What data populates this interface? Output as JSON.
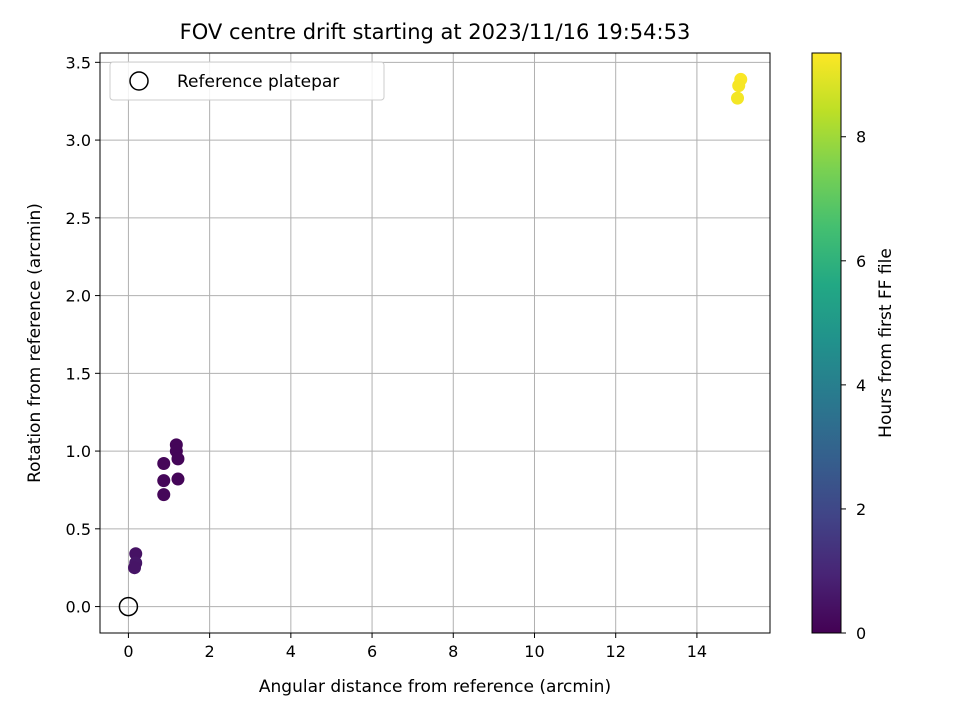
{
  "chart_data": {
    "type": "scatter",
    "title": "FOV centre drift starting at 2023/11/16 19:54:53",
    "xlabel": "Angular distance from reference (arcmin)",
    "ylabel": "Rotation from reference (arcmin)",
    "xlim": [
      -0.7,
      15.8
    ],
    "ylim": [
      -0.17,
      3.56
    ],
    "xticks": [
      0,
      2,
      4,
      6,
      8,
      10,
      12,
      14
    ],
    "yticks": [
      0.0,
      0.5,
      1.0,
      1.5,
      2.0,
      2.5,
      3.0,
      3.5
    ],
    "xtick_labels": [
      "0",
      "2",
      "4",
      "6",
      "8",
      "10",
      "12",
      "14"
    ],
    "ytick_labels": [
      "0.0",
      "0.5",
      "1.0",
      "1.5",
      "2.0",
      "2.5",
      "3.0",
      "3.5"
    ],
    "grid": true,
    "legend": {
      "position": "upper-left",
      "entries": [
        {
          "label": "Reference platepar",
          "marker": "open-circle"
        }
      ]
    },
    "reference_point": {
      "x": 0.0,
      "y": 0.0
    },
    "colormap": "viridis",
    "colorbar": {
      "label": "Hours from first FF file",
      "range": [
        0,
        9.35
      ],
      "ticks": [
        0,
        2,
        4,
        6,
        8
      ],
      "tick_labels": [
        "0",
        "2",
        "4",
        "6",
        "8"
      ]
    },
    "points": [
      {
        "x": 0.18,
        "y": 0.34,
        "hours": 0.45
      },
      {
        "x": 0.18,
        "y": 0.28,
        "hours": 0.55
      },
      {
        "x": 0.15,
        "y": 0.25,
        "hours": 0.5
      },
      {
        "x": 0.87,
        "y": 0.92,
        "hours": 0.15
      },
      {
        "x": 0.87,
        "y": 0.81,
        "hours": 0.15
      },
      {
        "x": 0.87,
        "y": 0.72,
        "hours": 0.15
      },
      {
        "x": 1.18,
        "y": 1.04,
        "hours": 0.1
      },
      {
        "x": 1.18,
        "y": 1.0,
        "hours": 0.1
      },
      {
        "x": 1.22,
        "y": 0.95,
        "hours": 0.1
      },
      {
        "x": 1.22,
        "y": 0.82,
        "hours": 0.1
      },
      {
        "x": 15.08,
        "y": 3.39,
        "hours": 9.3
      },
      {
        "x": 15.03,
        "y": 3.35,
        "hours": 9.25
      },
      {
        "x": 15.0,
        "y": 3.27,
        "hours": 9.2
      }
    ]
  }
}
